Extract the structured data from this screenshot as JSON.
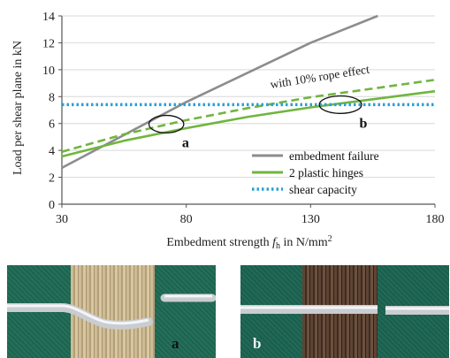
{
  "chart_data": {
    "type": "line",
    "title": "",
    "xlabel_main": "Embedment strength ",
    "xlabel_symbol": "f",
    "xlabel_subscript": "h",
    "xlabel_unit": " in N/mm",
    "xlabel_unit_superscript": "2",
    "ylabel": "Load per shear plane in kN",
    "xlim": [
      30,
      180
    ],
    "ylim": [
      0,
      14
    ],
    "x_ticks": [
      30,
      80,
      130,
      180
    ],
    "y_ticks": [
      0,
      2,
      4,
      6,
      8,
      10,
      12,
      14
    ],
    "grid": "horizontal",
    "legend_placement": "bottom-right",
    "series": [
      {
        "name": "embedment failure",
        "style": "solid",
        "color": "#8c8c8c",
        "x": [
          30,
          80,
          130,
          157
        ],
        "y": [
          2.7,
          7.6,
          12.0,
          14.0
        ]
      },
      {
        "name": "2 plastic hinges",
        "style": "solid",
        "color": "#70b63e",
        "x": [
          30,
          55,
          80,
          105,
          130,
          155,
          180
        ],
        "y": [
          3.55,
          4.72,
          5.65,
          6.5,
          7.2,
          7.8,
          8.4
        ]
      },
      {
        "name": "",
        "style": "dashed",
        "color": "#70b63e",
        "x": [
          30,
          55,
          80,
          105,
          130,
          155,
          180
        ],
        "y": [
          3.9,
          5.2,
          6.25,
          7.15,
          7.95,
          8.6,
          9.25
        ]
      },
      {
        "name": "shear capacity",
        "style": "dotted",
        "color": "#2b9fd6",
        "x": [
          30,
          180
        ],
        "y": [
          7.4,
          7.4
        ]
      }
    ],
    "annotations": [
      {
        "text": "with 10% rope effect",
        "x": 114,
        "y": 7.95,
        "rotate_along": "dashed"
      }
    ],
    "markers": [
      {
        "label": "a",
        "x": 72,
        "y": 5.95,
        "rx": 7,
        "ry": 0.65
      },
      {
        "label": "b",
        "x": 142,
        "y": 7.4,
        "rx": 8.5,
        "ry": 0.65
      }
    ]
  },
  "photos": [
    {
      "label": "a",
      "shows": "bent-pin"
    },
    {
      "label": "b",
      "shows": "sheared-pin"
    }
  ]
}
